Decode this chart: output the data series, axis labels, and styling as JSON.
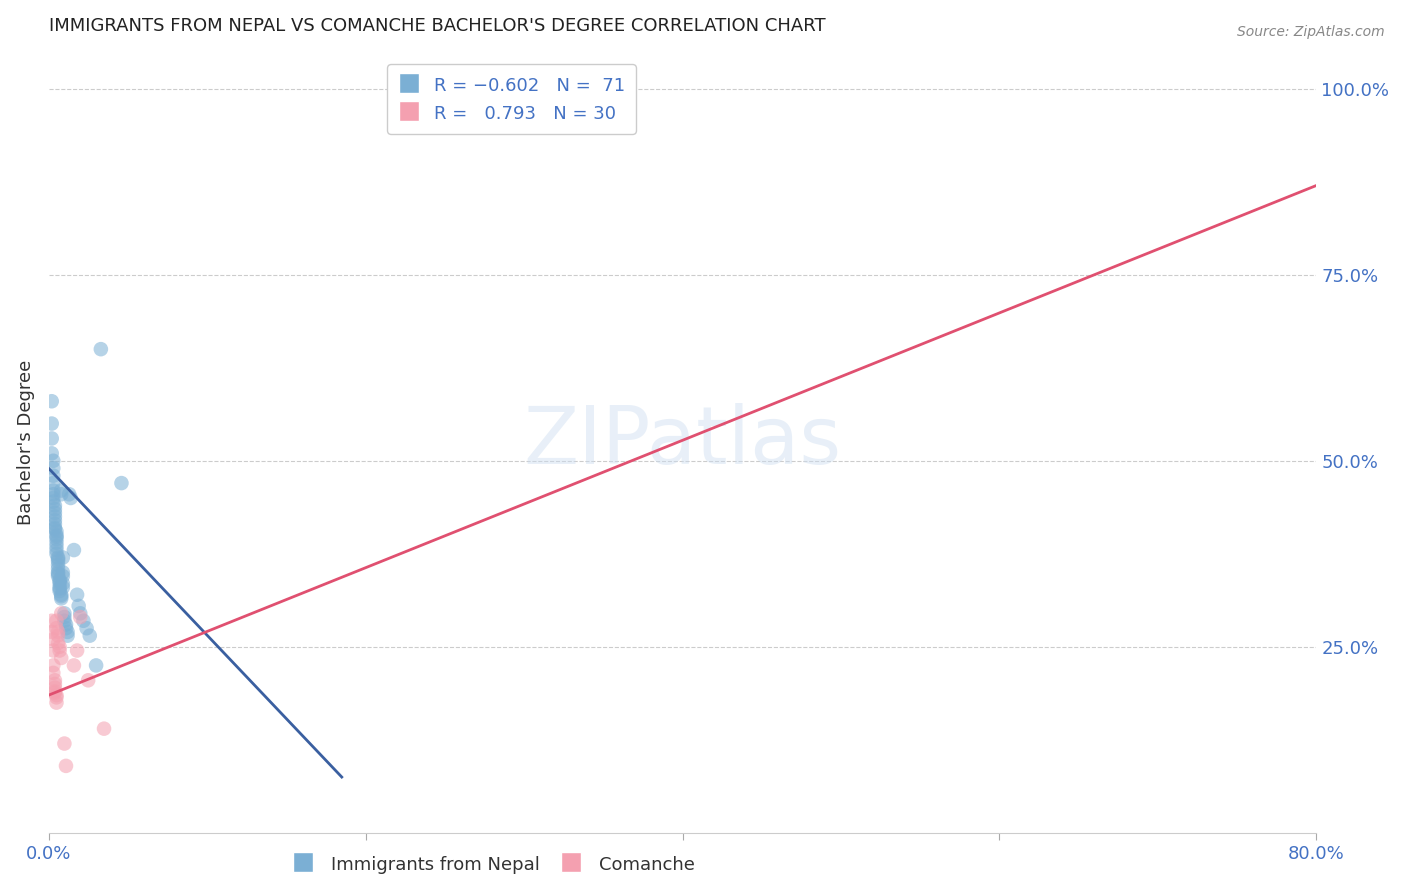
{
  "title": "IMMIGRANTS FROM NEPAL VS COMANCHE BACHELOR'S DEGREE CORRELATION CHART",
  "source": "Source: ZipAtlas.com",
  "ylabel": "Bachelor's Degree",
  "xlim": [
    0.0,
    0.8
  ],
  "ylim": [
    0.0,
    1.05
  ],
  "grid_color": "#cccccc",
  "background_color": "#ffffff",
  "blue_color": "#7bafd4",
  "blue_line_color": "#3a5fa0",
  "pink_color": "#f4a0b0",
  "pink_line_color": "#e05070",
  "title_color": "#222222",
  "axis_label_color": "#4472c4",
  "blue_scatter": [
    [
      0.002,
      0.58
    ],
    [
      0.002,
      0.55
    ],
    [
      0.002,
      0.53
    ],
    [
      0.002,
      0.51
    ],
    [
      0.003,
      0.5
    ],
    [
      0.003,
      0.49
    ],
    [
      0.003,
      0.48
    ],
    [
      0.003,
      0.47
    ],
    [
      0.003,
      0.46
    ],
    [
      0.003,
      0.455
    ],
    [
      0.003,
      0.45
    ],
    [
      0.003,
      0.445
    ],
    [
      0.004,
      0.44
    ],
    [
      0.004,
      0.435
    ],
    [
      0.004,
      0.43
    ],
    [
      0.004,
      0.425
    ],
    [
      0.004,
      0.42
    ],
    [
      0.004,
      0.415
    ],
    [
      0.004,
      0.41
    ],
    [
      0.004,
      0.408
    ],
    [
      0.005,
      0.405
    ],
    [
      0.005,
      0.4
    ],
    [
      0.005,
      0.398
    ],
    [
      0.005,
      0.395
    ],
    [
      0.005,
      0.39
    ],
    [
      0.005,
      0.385
    ],
    [
      0.005,
      0.38
    ],
    [
      0.005,
      0.375
    ],
    [
      0.006,
      0.37
    ],
    [
      0.006,
      0.368
    ],
    [
      0.006,
      0.365
    ],
    [
      0.006,
      0.36
    ],
    [
      0.006,
      0.355
    ],
    [
      0.006,
      0.35
    ],
    [
      0.006,
      0.348
    ],
    [
      0.006,
      0.345
    ],
    [
      0.007,
      0.34
    ],
    [
      0.007,
      0.338
    ],
    [
      0.007,
      0.335
    ],
    [
      0.007,
      0.33
    ],
    [
      0.007,
      0.328
    ],
    [
      0.007,
      0.325
    ],
    [
      0.008,
      0.32
    ],
    [
      0.008,
      0.318
    ],
    [
      0.008,
      0.315
    ],
    [
      0.008,
      0.46
    ],
    [
      0.008,
      0.455
    ],
    [
      0.009,
      0.37
    ],
    [
      0.009,
      0.35
    ],
    [
      0.009,
      0.345
    ],
    [
      0.009,
      0.335
    ],
    [
      0.009,
      0.33
    ],
    [
      0.01,
      0.295
    ],
    [
      0.01,
      0.29
    ],
    [
      0.01,
      0.285
    ],
    [
      0.011,
      0.28
    ],
    [
      0.011,
      0.275
    ],
    [
      0.012,
      0.27
    ],
    [
      0.012,
      0.265
    ],
    [
      0.013,
      0.455
    ],
    [
      0.014,
      0.45
    ],
    [
      0.016,
      0.38
    ],
    [
      0.018,
      0.32
    ],
    [
      0.019,
      0.305
    ],
    [
      0.02,
      0.295
    ],
    [
      0.022,
      0.285
    ],
    [
      0.024,
      0.275
    ],
    [
      0.026,
      0.265
    ],
    [
      0.03,
      0.225
    ],
    [
      0.033,
      0.65
    ],
    [
      0.046,
      0.47
    ]
  ],
  "pink_scatter": [
    [
      0.002,
      0.285
    ],
    [
      0.002,
      0.27
    ],
    [
      0.003,
      0.26
    ],
    [
      0.003,
      0.245
    ],
    [
      0.003,
      0.225
    ],
    [
      0.003,
      0.215
    ],
    [
      0.004,
      0.205
    ],
    [
      0.004,
      0.2
    ],
    [
      0.004,
      0.195
    ],
    [
      0.004,
      0.19
    ],
    [
      0.004,
      0.188
    ],
    [
      0.005,
      0.185
    ],
    [
      0.005,
      0.182
    ],
    [
      0.005,
      0.175
    ],
    [
      0.005,
      0.285
    ],
    [
      0.005,
      0.275
    ],
    [
      0.006,
      0.27
    ],
    [
      0.006,
      0.265
    ],
    [
      0.006,
      0.255
    ],
    [
      0.007,
      0.25
    ],
    [
      0.007,
      0.245
    ],
    [
      0.008,
      0.235
    ],
    [
      0.008,
      0.295
    ],
    [
      0.01,
      0.12
    ],
    [
      0.011,
      0.09
    ],
    [
      0.016,
      0.225
    ],
    [
      0.018,
      0.245
    ],
    [
      0.02,
      0.29
    ],
    [
      0.025,
      0.205
    ],
    [
      0.035,
      0.14
    ]
  ],
  "blue_line_x": [
    0.0,
    0.185
  ],
  "blue_line_y": [
    0.49,
    0.075
  ],
  "pink_line_x": [
    0.0,
    0.8
  ],
  "pink_line_y": [
    0.185,
    0.87
  ]
}
